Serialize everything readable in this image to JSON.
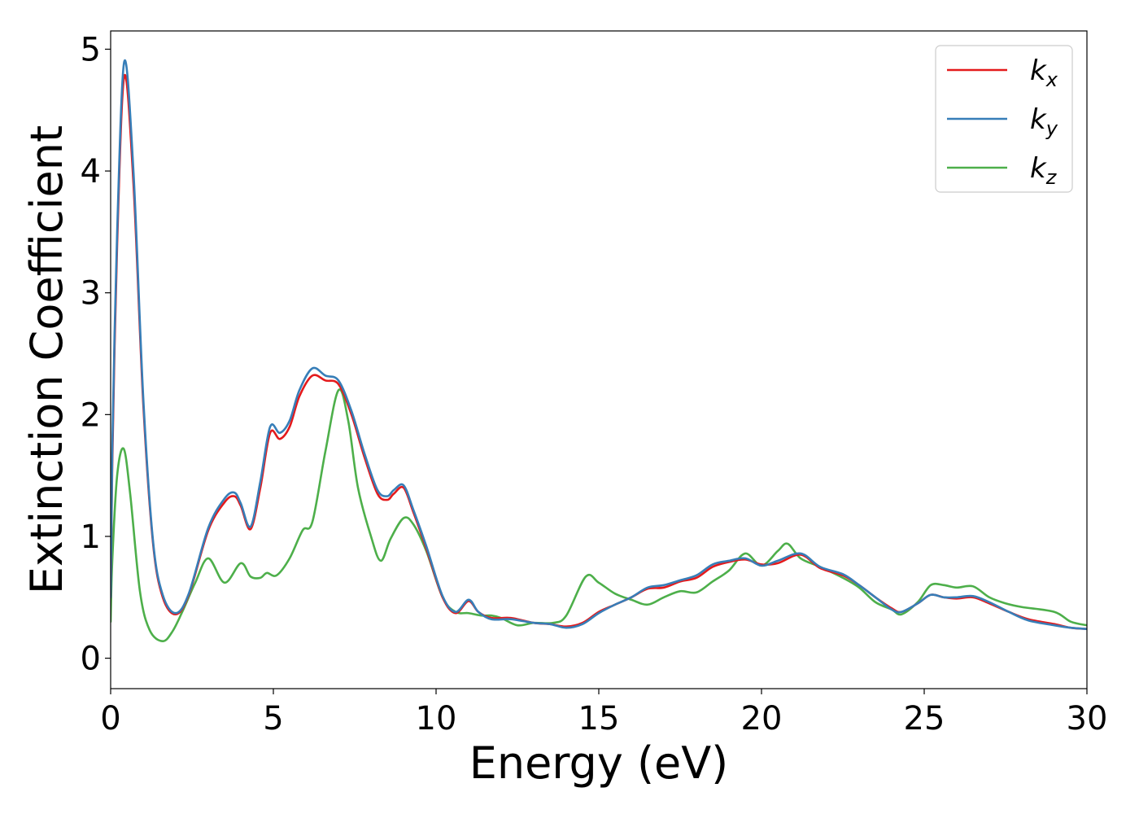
{
  "chart_data": {
    "type": "line",
    "xlabel": "Energy (eV)",
    "ylabel": "Extinction Coefficient",
    "xlim": [
      0,
      30
    ],
    "ylim": [
      -0.25,
      5.15
    ],
    "xticks": [
      0,
      5,
      10,
      15,
      20,
      25,
      30
    ],
    "yticks": [
      0,
      1,
      2,
      3,
      4,
      5
    ],
    "grid": false,
    "legend_position": "top-right",
    "series": [
      {
        "name": "k_x",
        "label_base": "k",
        "label_sub": "x",
        "color": "#e41a1c",
        "x": [
          0,
          0.05,
          0.2,
          0.42,
          0.7,
          1.0,
          1.3,
          1.6,
          2.0,
          2.4,
          3.0,
          3.5,
          3.8,
          4.0,
          4.3,
          4.6,
          4.9,
          5.2,
          5.5,
          5.8,
          6.2,
          6.6,
          7.0,
          7.4,
          7.8,
          8.2,
          8.5,
          8.7,
          9.0,
          9.3,
          9.7,
          10.2,
          10.6,
          11.0,
          11.3,
          11.7,
          12.3,
          13.0,
          13.5,
          14.0,
          14.5,
          15.0,
          15.5,
          16.0,
          16.5,
          17.0,
          17.5,
          18.0,
          18.5,
          19.0,
          19.5,
          20.0,
          20.5,
          21.2,
          21.8,
          22.5,
          23.0,
          23.5,
          24.0,
          24.3,
          24.8,
          25.2,
          25.6,
          26.0,
          26.5,
          27.0,
          27.6,
          28.2,
          29.0,
          29.5,
          30.0
        ],
        "y": [
          0.5,
          1.6,
          3.4,
          4.78,
          3.9,
          2.1,
          0.95,
          0.5,
          0.36,
          0.52,
          1.05,
          1.28,
          1.33,
          1.25,
          1.06,
          1.4,
          1.85,
          1.8,
          1.9,
          2.15,
          2.32,
          2.28,
          2.25,
          2.0,
          1.65,
          1.35,
          1.3,
          1.35,
          1.4,
          1.2,
          0.9,
          0.5,
          0.37,
          0.47,
          0.38,
          0.33,
          0.33,
          0.29,
          0.28,
          0.26,
          0.29,
          0.38,
          0.44,
          0.5,
          0.57,
          0.58,
          0.63,
          0.66,
          0.75,
          0.79,
          0.81,
          0.77,
          0.78,
          0.85,
          0.74,
          0.68,
          0.6,
          0.5,
          0.41,
          0.38,
          0.45,
          0.52,
          0.5,
          0.49,
          0.5,
          0.45,
          0.38,
          0.32,
          0.28,
          0.25,
          0.24
        ]
      },
      {
        "name": "k_y",
        "label_base": "k",
        "label_sub": "y",
        "color": "#377eb8",
        "x": [
          0,
          0.05,
          0.2,
          0.42,
          0.7,
          1.0,
          1.3,
          1.6,
          2.0,
          2.4,
          3.0,
          3.5,
          3.8,
          4.0,
          4.3,
          4.6,
          4.9,
          5.2,
          5.5,
          5.8,
          6.2,
          6.6,
          7.0,
          7.4,
          7.8,
          8.2,
          8.5,
          8.7,
          9.0,
          9.3,
          9.7,
          10.2,
          10.6,
          11.0,
          11.3,
          11.7,
          12.3,
          13.0,
          13.5,
          14.0,
          14.5,
          15.0,
          15.5,
          16.0,
          16.5,
          17.0,
          17.5,
          18.0,
          18.5,
          19.0,
          19.5,
          20.0,
          20.5,
          21.2,
          21.8,
          22.5,
          23.0,
          23.5,
          24.0,
          24.3,
          24.8,
          25.2,
          25.6,
          26.0,
          26.5,
          27.0,
          27.6,
          28.2,
          29.0,
          29.5,
          30.0
        ],
        "y": [
          0.5,
          1.7,
          3.5,
          4.9,
          4.0,
          2.15,
          0.97,
          0.52,
          0.37,
          0.53,
          1.07,
          1.31,
          1.36,
          1.27,
          1.08,
          1.45,
          1.9,
          1.85,
          1.95,
          2.2,
          2.38,
          2.32,
          2.28,
          2.03,
          1.68,
          1.38,
          1.33,
          1.38,
          1.42,
          1.22,
          0.92,
          0.51,
          0.38,
          0.48,
          0.38,
          0.32,
          0.32,
          0.29,
          0.28,
          0.25,
          0.28,
          0.37,
          0.44,
          0.5,
          0.58,
          0.6,
          0.64,
          0.68,
          0.77,
          0.8,
          0.82,
          0.76,
          0.8,
          0.86,
          0.75,
          0.69,
          0.6,
          0.5,
          0.4,
          0.38,
          0.45,
          0.52,
          0.5,
          0.5,
          0.51,
          0.46,
          0.38,
          0.31,
          0.27,
          0.25,
          0.24
        ]
      },
      {
        "name": "k_z",
        "label_base": "k",
        "label_sub": "z",
        "color": "#4daf4a",
        "x": [
          0,
          0.05,
          0.2,
          0.4,
          0.6,
          0.9,
          1.2,
          1.6,
          1.9,
          2.2,
          2.6,
          3.0,
          3.5,
          4.0,
          4.3,
          4.6,
          4.8,
          5.1,
          5.5,
          5.9,
          6.2,
          6.6,
          7.0,
          7.3,
          7.6,
          8.0,
          8.3,
          8.6,
          9.0,
          9.3,
          9.7,
          10.2,
          10.6,
          11.0,
          11.4,
          11.7,
          12.0,
          12.5,
          13.0,
          13.6,
          14.0,
          14.6,
          15.0,
          15.5,
          16.0,
          16.5,
          17.0,
          17.5,
          18.0,
          18.5,
          19.0,
          19.5,
          20.0,
          20.5,
          20.8,
          21.2,
          21.8,
          22.5,
          23.0,
          23.5,
          24.0,
          24.3,
          24.8,
          25.2,
          25.6,
          26.0,
          26.5,
          27.0,
          27.5,
          28.0,
          29.0,
          29.5,
          30.0
        ],
        "y": [
          0.3,
          0.8,
          1.5,
          1.72,
          1.35,
          0.55,
          0.23,
          0.14,
          0.22,
          0.38,
          0.62,
          0.82,
          0.62,
          0.78,
          0.67,
          0.66,
          0.7,
          0.68,
          0.82,
          1.05,
          1.12,
          1.7,
          2.2,
          1.95,
          1.4,
          1.0,
          0.8,
          0.98,
          1.15,
          1.1,
          0.88,
          0.5,
          0.38,
          0.37,
          0.35,
          0.35,
          0.33,
          0.27,
          0.29,
          0.29,
          0.35,
          0.67,
          0.62,
          0.53,
          0.48,
          0.44,
          0.5,
          0.55,
          0.54,
          0.63,
          0.72,
          0.86,
          0.76,
          0.88,
          0.94,
          0.82,
          0.75,
          0.66,
          0.58,
          0.46,
          0.4,
          0.36,
          0.46,
          0.6,
          0.6,
          0.58,
          0.59,
          0.5,
          0.45,
          0.42,
          0.38,
          0.3,
          0.27
        ]
      }
    ]
  }
}
